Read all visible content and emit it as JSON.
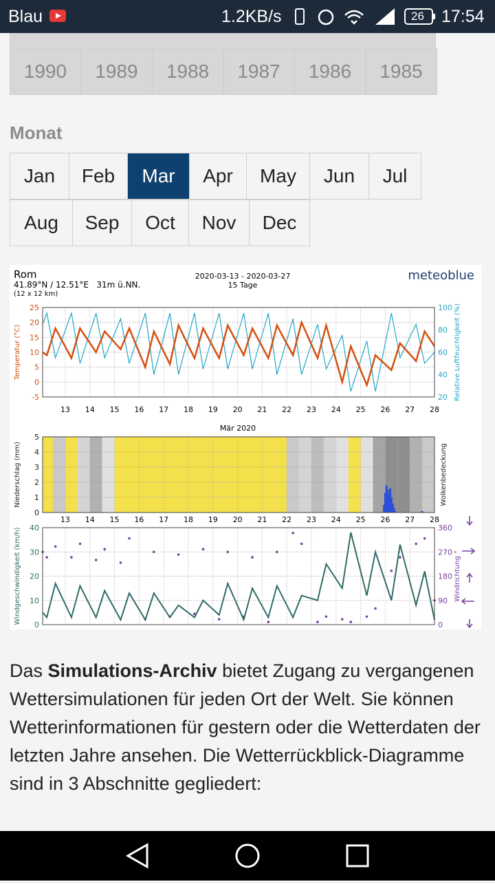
{
  "status": {
    "carrier": "Blau",
    "speed": "1.2KB/s",
    "battery": "26",
    "time": "17:54"
  },
  "years": [
    "1990",
    "1989",
    "1988",
    "1987",
    "1986",
    "1985"
  ],
  "month_label": "Monat",
  "months": [
    "Jan",
    "Feb",
    "Mar",
    "Apr",
    "May",
    "Jun",
    "Jul",
    "Aug",
    "Sep",
    "Oct",
    "Nov",
    "Dec"
  ],
  "selected_month": "Mar",
  "chart_data": {
    "type": "meteogram",
    "location": "Rom",
    "coords": "41.89°N / 12.51°E   31m ü.NN.",
    "grid_size": "(12 x 12 km)",
    "period": "2020-03-13 - 2020-03-27",
    "days": "15 Tage",
    "brand": "meteoblue",
    "month": "Mär 2020",
    "xlim": [
      12.08,
      28
    ],
    "xticks": [
      13,
      14,
      15,
      16,
      17,
      18,
      19,
      20,
      21,
      22,
      23,
      24,
      25,
      26,
      27,
      28
    ],
    "x": [
      12.08,
      12.25,
      12.6,
      13.25,
      13.6,
      14.25,
      14.6,
      15.25,
      15.6,
      16.25,
      16.6,
      17.25,
      17.6,
      18.25,
      18.6,
      19.25,
      19.6,
      20.25,
      20.6,
      21.25,
      21.6,
      22.25,
      22.6,
      23.25,
      23.6,
      24.25,
      24.6,
      25.25,
      25.6,
      26.25,
      26.6,
      27.25,
      27.6,
      28
    ],
    "temperature": {
      "ylabel": "Temperatur (°C)",
      "ylim": [
        -5,
        25
      ],
      "yticks": [
        -5,
        0,
        5,
        10,
        15,
        20,
        25
      ],
      "color": "#d4500f",
      "values": [
        10,
        9,
        18,
        8,
        18,
        10,
        17,
        11,
        18,
        5,
        17,
        6,
        19,
        8,
        18,
        8,
        19,
        9,
        18,
        8,
        19,
        9,
        20,
        8,
        19,
        0,
        12,
        -1,
        9,
        4,
        13,
        7,
        17,
        12
      ]
    },
    "humidity": {
      "ylabel": "Relative Luftfeuchtigkeit (%)",
      "ylim": [
        20,
        100
      ],
      "yticks": [
        20,
        40,
        60,
        80,
        100
      ],
      "color": "#23a6c4",
      "values": [
        85,
        95,
        55,
        95,
        50,
        95,
        55,
        90,
        50,
        95,
        40,
        95,
        40,
        95,
        45,
        95,
        45,
        95,
        45,
        95,
        40,
        90,
        40,
        85,
        45,
        75,
        25,
        70,
        25,
        95,
        55,
        85,
        50,
        60
      ]
    },
    "precipitation": {
      "ylabel": "Niederschlag (mm)",
      "ylim": [
        0,
        5
      ],
      "yticks": [
        0,
        1,
        2,
        3,
        4,
        5
      ],
      "color": "#2b4fd8",
      "x": [
        25.95,
        26.0,
        26.05,
        26.1,
        26.15,
        26.2,
        26.25,
        26.3,
        26.35,
        26.4,
        27.5
      ],
      "values": [
        0.5,
        1.3,
        1.8,
        1.5,
        1.2,
        1.6,
        1.0,
        0.6,
        0.3,
        0.1,
        0.1
      ]
    },
    "cloud_cover": {
      "ylabel": "Wolkenbedeckung",
      "clear_color": "#f4e04a",
      "x": [
        12.08,
        12.5,
        13,
        13.5,
        14,
        14.5,
        15,
        15.5,
        16,
        16.5,
        17,
        17.5,
        18,
        18.5,
        19,
        19.5,
        20,
        20.5,
        21,
        21.5,
        22,
        22.5,
        23,
        23.5,
        24,
        24.5,
        25,
        25.5,
        26,
        26.5,
        27,
        27.5
      ],
      "values": [
        10,
        40,
        0,
        30,
        60,
        20,
        0,
        10,
        0,
        0,
        0,
        0,
        0,
        0,
        0,
        0,
        0,
        0,
        0,
        0,
        40,
        30,
        50,
        30,
        20,
        10,
        20,
        70,
        90,
        90,
        60,
        40
      ]
    },
    "wind_speed": {
      "ylabel": "Windgeschwindigkeit (km/h)",
      "ylim": [
        0,
        40
      ],
      "yticks": [
        0,
        10,
        20,
        30,
        40
      ],
      "color": "#2f6b67",
      "values": [
        5,
        3,
        17,
        3,
        16,
        3,
        14,
        2,
        13,
        2,
        13,
        3,
        8,
        3,
        10,
        4,
        17,
        2,
        15,
        3,
        16,
        3,
        12,
        10,
        25,
        15,
        38,
        12,
        30,
        10,
        33,
        8,
        22,
        2
      ]
    },
    "wind_direction": {
      "ylabel": "Windrichtung °",
      "ylim": [
        0,
        360
      ],
      "yticks": [
        0,
        90,
        180,
        270,
        360
      ],
      "color": "#7a3fa0",
      "values": [
        270,
        250,
        290,
        250,
        300,
        240,
        280,
        230,
        320,
        20,
        270,
        30,
        260,
        40,
        280,
        20,
        270,
        30,
        250,
        10,
        270,
        340,
        300,
        10,
        30,
        20,
        10,
        30,
        60,
        200,
        250,
        300,
        320,
        90
      ]
    }
  },
  "text_before": "Das ",
  "text_bold": "Simulations-Archiv",
  "text_after": " bietet Zugang zu vergangenen Wettersimulationen für jeden Ort der Welt. Sie können Wetterinformationen für gestern oder die Wetterdaten der letzten Jahre ansehen. Die Wetterrückblick-Diagramme sind in 3 Abschnitte gegliedert:"
}
